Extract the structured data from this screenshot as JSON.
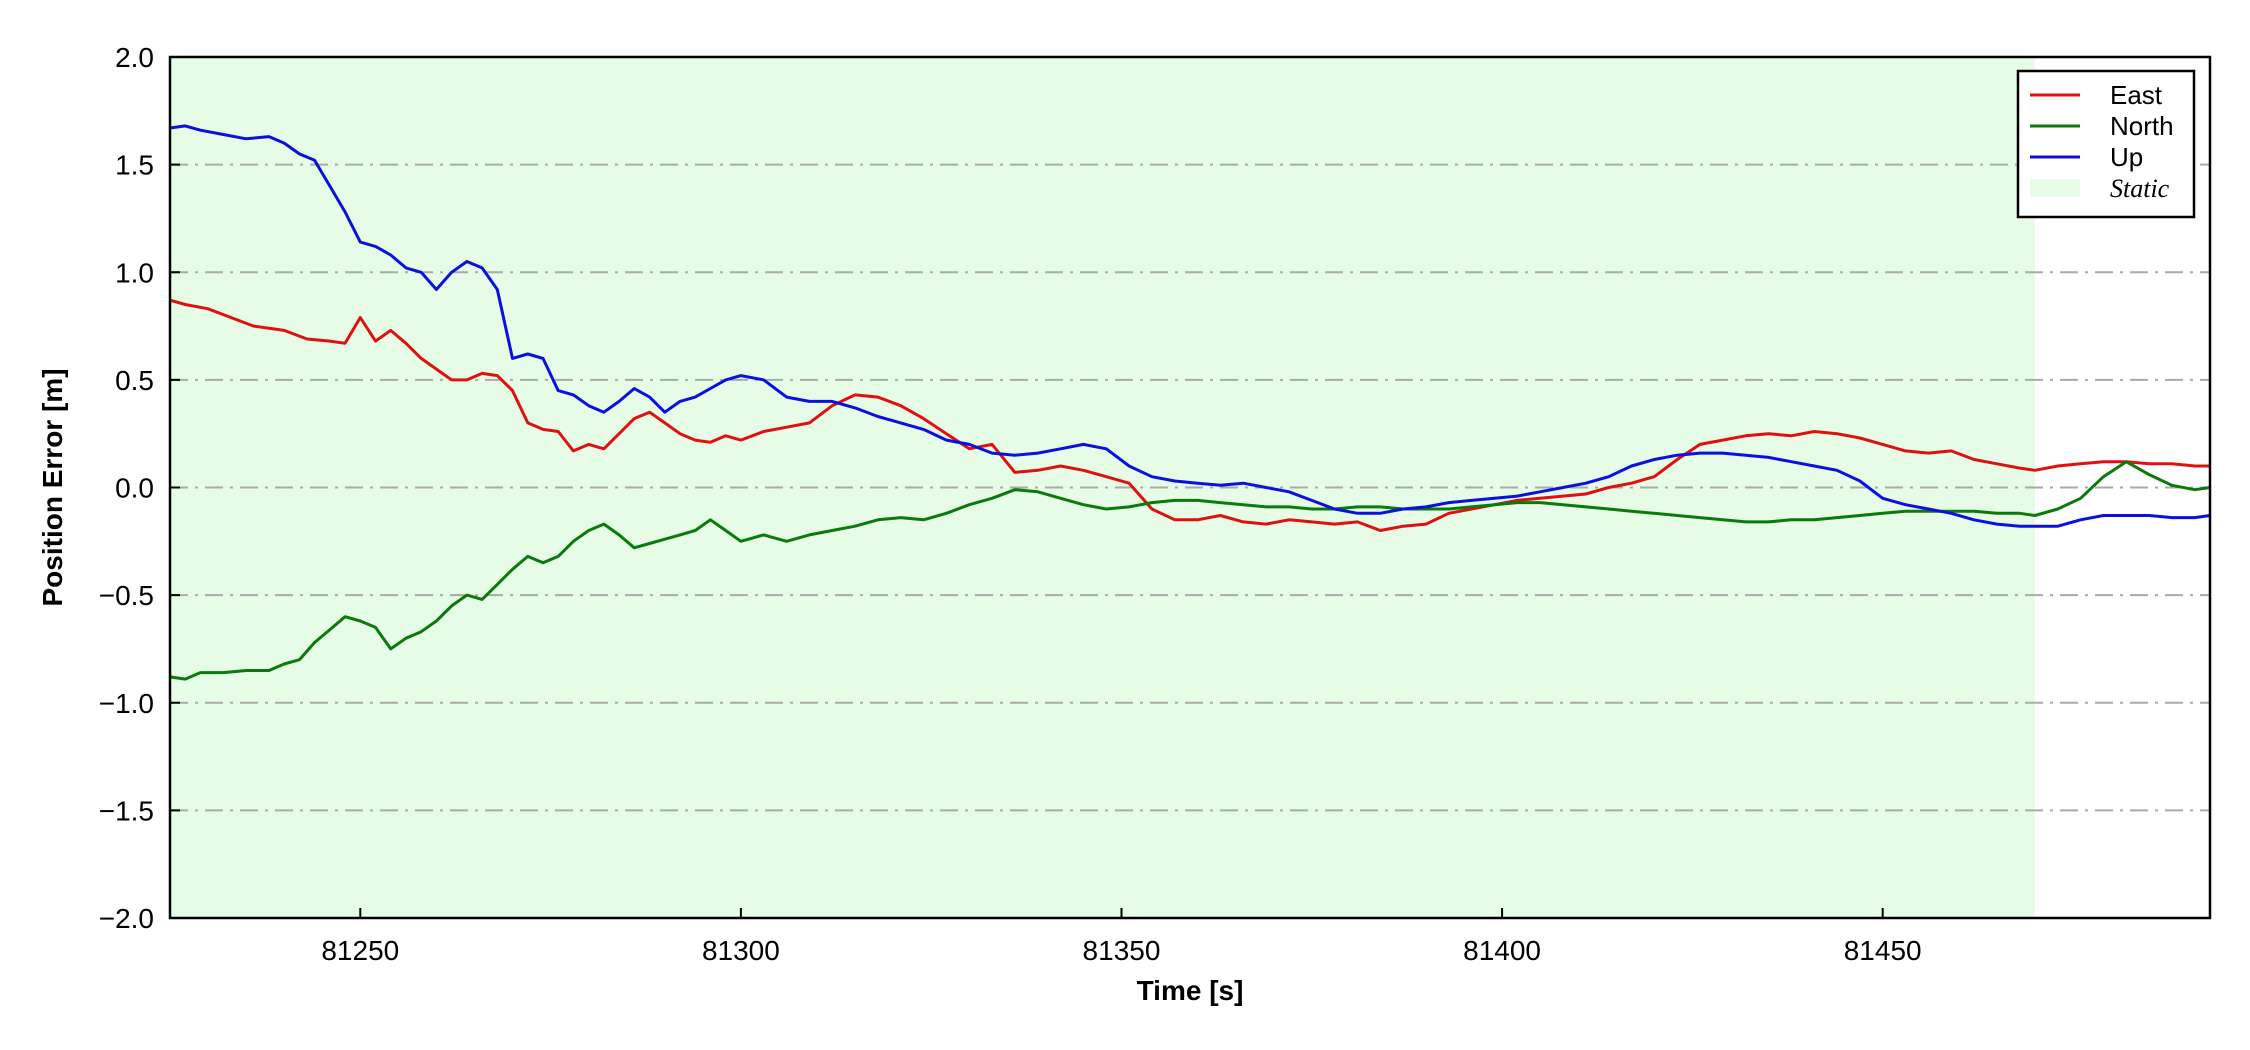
{
  "chart_data": {
    "type": "line",
    "xlabel": "Time [s]",
    "ylabel": "Position Error [m]",
    "xlim": [
      81225,
      81493
    ],
    "ylim": [
      -2.0,
      2.0
    ],
    "x_ticks": [
      81250,
      81300,
      81350,
      81400,
      81450
    ],
    "x_tick_labels": [
      "81250",
      "81300",
      "81350",
      "81400",
      "81450"
    ],
    "y_ticks": [
      -2.0,
      -1.5,
      -1.0,
      -0.5,
      0.0,
      0.5,
      1.0,
      1.5,
      2.0
    ],
    "y_tick_labels": [
      "−2.0",
      "−1.5",
      "−1.0",
      "−0.5",
      "0.0",
      "0.5",
      "1.0",
      "1.5",
      "2.0"
    ],
    "grid": {
      "axis": "y",
      "style": "dash-dot",
      "color": "#aaaaaa"
    },
    "legend_position": "top-right",
    "shaded_region": {
      "label": "Static",
      "x_start": 81225,
      "x_end": 81470,
      "color": "#e6fce6"
    },
    "series": [
      {
        "name": "East",
        "color": "#e01010",
        "x": [
          81225,
          81227,
          81230,
          81233,
          81236,
          81240,
          81243,
          81246,
          81248,
          81250,
          81252,
          81254,
          81256,
          81258,
          81260,
          81262,
          81264,
          81266,
          81268,
          81270,
          81272,
          81274,
          81276,
          81278,
          81280,
          81282,
          81284,
          81286,
          81288,
          81290,
          81292,
          81294,
          81296,
          81298,
          81300,
          81303,
          81306,
          81309,
          81312,
          81315,
          81318,
          81321,
          81324,
          81327,
          81330,
          81333,
          81336,
          81339,
          81342,
          81345,
          81348,
          81351,
          81354,
          81357,
          81360,
          81363,
          81366,
          81369,
          81372,
          81375,
          81378,
          81381,
          81384,
          81387,
          81390,
          81393,
          81396,
          81399,
          81402,
          81405,
          81408,
          81411,
          81414,
          81417,
          81420,
          81423,
          81426,
          81429,
          81432,
          81435,
          81438,
          81441,
          81444,
          81447,
          81450,
          81453,
          81456,
          81459,
          81462,
          81465,
          81468,
          81470,
          81473,
          81476,
          81479,
          81482,
          81485,
          81488,
          81491,
          81493
        ],
        "values": [
          0.87,
          0.85,
          0.83,
          0.79,
          0.75,
          0.73,
          0.69,
          0.68,
          0.67,
          0.79,
          0.68,
          0.73,
          0.67,
          0.6,
          0.55,
          0.5,
          0.5,
          0.53,
          0.52,
          0.45,
          0.3,
          0.27,
          0.26,
          0.17,
          0.2,
          0.18,
          0.25,
          0.32,
          0.35,
          0.3,
          0.25,
          0.22,
          0.21,
          0.24,
          0.22,
          0.26,
          0.28,
          0.3,
          0.38,
          0.43,
          0.42,
          0.38,
          0.32,
          0.25,
          0.18,
          0.2,
          0.07,
          0.08,
          0.1,
          0.08,
          0.05,
          0.02,
          -0.1,
          -0.15,
          -0.15,
          -0.13,
          -0.16,
          -0.17,
          -0.15,
          -0.16,
          -0.17,
          -0.16,
          -0.2,
          -0.18,
          -0.17,
          -0.12,
          -0.1,
          -0.08,
          -0.06,
          -0.05,
          -0.04,
          -0.03,
          0.0,
          0.02,
          0.05,
          0.13,
          0.2,
          0.22,
          0.24,
          0.25,
          0.24,
          0.26,
          0.25,
          0.23,
          0.2,
          0.17,
          0.16,
          0.17,
          0.13,
          0.11,
          0.09,
          0.08,
          0.1,
          0.11,
          0.12,
          0.12,
          0.11,
          0.11,
          0.1,
          0.1
        ]
      },
      {
        "name": "North",
        "color": "#0a7a0a",
        "x": [
          81225,
          81227,
          81229,
          81232,
          81235,
          81238,
          81240,
          81242,
          81244,
          81246,
          81248,
          81250,
          81252,
          81254,
          81256,
          81258,
          81260,
          81262,
          81264,
          81266,
          81268,
          81270,
          81272,
          81274,
          81276,
          81278,
          81280,
          81282,
          81284,
          81286,
          81288,
          81290,
          81292,
          81294,
          81296,
          81298,
          81300,
          81303,
          81306,
          81309,
          81312,
          81315,
          81318,
          81321,
          81324,
          81327,
          81330,
          81333,
          81336,
          81339,
          81342,
          81345,
          81348,
          81351,
          81354,
          81357,
          81360,
          81363,
          81366,
          81369,
          81372,
          81375,
          81378,
          81381,
          81384,
          81387,
          81390,
          81393,
          81396,
          81399,
          81402,
          81405,
          81408,
          81411,
          81414,
          81417,
          81420,
          81423,
          81426,
          81429,
          81432,
          81435,
          81438,
          81441,
          81444,
          81447,
          81450,
          81453,
          81456,
          81459,
          81462,
          81465,
          81468,
          81470,
          81473,
          81476,
          81479,
          81482,
          81485,
          81488,
          81491,
          81493
        ],
        "values": [
          -0.88,
          -0.89,
          -0.86,
          -0.86,
          -0.85,
          -0.85,
          -0.82,
          -0.8,
          -0.72,
          -0.66,
          -0.6,
          -0.62,
          -0.65,
          -0.75,
          -0.7,
          -0.67,
          -0.62,
          -0.55,
          -0.5,
          -0.52,
          -0.45,
          -0.38,
          -0.32,
          -0.35,
          -0.32,
          -0.25,
          -0.2,
          -0.17,
          -0.22,
          -0.28,
          -0.26,
          -0.24,
          -0.22,
          -0.2,
          -0.15,
          -0.2,
          -0.25,
          -0.22,
          -0.25,
          -0.22,
          -0.2,
          -0.18,
          -0.15,
          -0.14,
          -0.15,
          -0.12,
          -0.08,
          -0.05,
          -0.01,
          -0.02,
          -0.05,
          -0.08,
          -0.1,
          -0.09,
          -0.07,
          -0.06,
          -0.06,
          -0.07,
          -0.08,
          -0.09,
          -0.09,
          -0.1,
          -0.1,
          -0.09,
          -0.09,
          -0.1,
          -0.1,
          -0.1,
          -0.09,
          -0.08,
          -0.07,
          -0.07,
          -0.08,
          -0.09,
          -0.1,
          -0.11,
          -0.12,
          -0.13,
          -0.14,
          -0.15,
          -0.16,
          -0.16,
          -0.15,
          -0.15,
          -0.14,
          -0.13,
          -0.12,
          -0.11,
          -0.11,
          -0.11,
          -0.11,
          -0.12,
          -0.12,
          -0.13,
          -0.1,
          -0.05,
          0.05,
          0.12,
          0.06,
          0.01,
          -0.01,
          0.0
        ]
      },
      {
        "name": "Up",
        "color": "#0a10e0",
        "x": [
          81225,
          81227,
          81229,
          81232,
          81235,
          81238,
          81240,
          81242,
          81244,
          81246,
          81248,
          81250,
          81252,
          81254,
          81256,
          81258,
          81260,
          81262,
          81264,
          81266,
          81268,
          81270,
          81272,
          81274,
          81276,
          81278,
          81280,
          81282,
          81284,
          81286,
          81288,
          81290,
          81292,
          81294,
          81296,
          81298,
          81300,
          81303,
          81306,
          81309,
          81312,
          81315,
          81318,
          81321,
          81324,
          81327,
          81330,
          81333,
          81336,
          81339,
          81342,
          81345,
          81348,
          81351,
          81354,
          81357,
          81360,
          81363,
          81366,
          81369,
          81372,
          81375,
          81378,
          81381,
          81384,
          81387,
          81390,
          81393,
          81396,
          81399,
          81402,
          81405,
          81408,
          81411,
          81414,
          81417,
          81420,
          81423,
          81426,
          81429,
          81432,
          81435,
          81438,
          81441,
          81444,
          81447,
          81450,
          81453,
          81456,
          81459,
          81462,
          81465,
          81468,
          81470,
          81473,
          81476,
          81479,
          81482,
          81485,
          81488,
          81491,
          81493
        ],
        "values": [
          1.67,
          1.68,
          1.66,
          1.64,
          1.62,
          1.63,
          1.6,
          1.55,
          1.52,
          1.4,
          1.28,
          1.14,
          1.12,
          1.08,
          1.02,
          1.0,
          0.92,
          1.0,
          1.05,
          1.02,
          0.92,
          0.6,
          0.62,
          0.6,
          0.45,
          0.43,
          0.38,
          0.35,
          0.4,
          0.46,
          0.42,
          0.35,
          0.4,
          0.42,
          0.46,
          0.5,
          0.52,
          0.5,
          0.42,
          0.4,
          0.4,
          0.37,
          0.33,
          0.3,
          0.27,
          0.22,
          0.2,
          0.16,
          0.15,
          0.16,
          0.18,
          0.2,
          0.18,
          0.1,
          0.05,
          0.03,
          0.02,
          0.01,
          0.02,
          0.0,
          -0.02,
          -0.06,
          -0.1,
          -0.12,
          -0.12,
          -0.1,
          -0.09,
          -0.07,
          -0.06,
          -0.05,
          -0.04,
          -0.02,
          0.0,
          0.02,
          0.05,
          0.1,
          0.13,
          0.15,
          0.16,
          0.16,
          0.15,
          0.14,
          0.12,
          0.1,
          0.08,
          0.03,
          -0.05,
          -0.08,
          -0.1,
          -0.12,
          -0.15,
          -0.17,
          -0.18,
          -0.18,
          -0.18,
          -0.15,
          -0.13,
          -0.13,
          -0.13,
          -0.14,
          -0.14,
          -0.13
        ]
      }
    ]
  }
}
